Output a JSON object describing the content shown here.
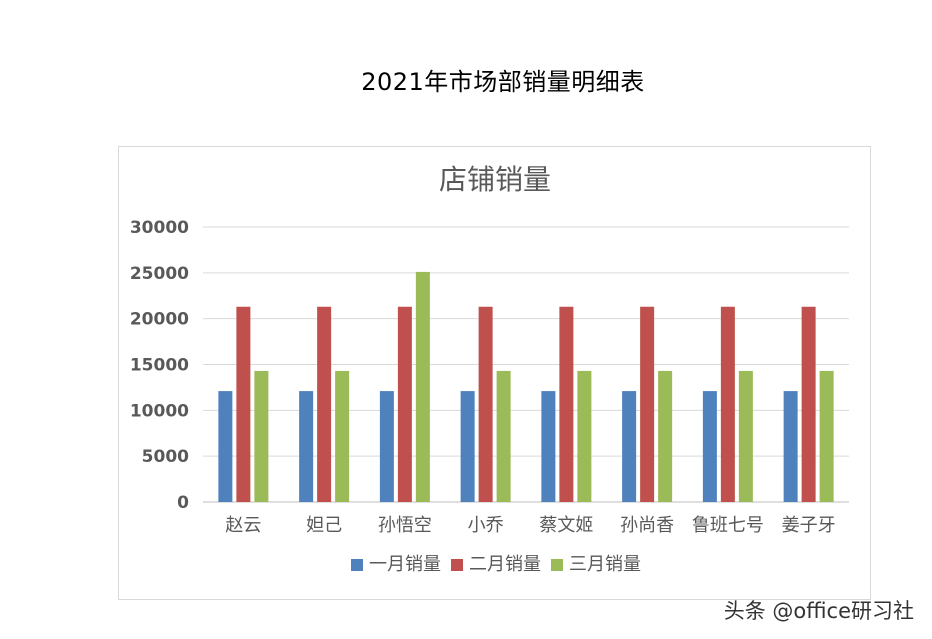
{
  "page": {
    "title": "2021年市场部销量明细表",
    "watermark": "头条 @office研习社"
  },
  "chart_data": {
    "type": "bar",
    "title": "店铺销量",
    "xlabel": "",
    "ylabel": "",
    "categories": [
      "赵云",
      "妲己",
      "孙悟空",
      "小乔",
      "蔡文姬",
      "孙尚香",
      "鲁班七号",
      "姜子牙"
    ],
    "series": [
      {
        "name": "一月销量",
        "color": "#4f81bd",
        "values": [
          12100,
          12100,
          12100,
          12100,
          12100,
          12100,
          12100,
          12100
        ]
      },
      {
        "name": "二月销量",
        "color": "#c0504d",
        "values": [
          21300,
          21300,
          21300,
          21300,
          21300,
          21300,
          21300,
          21300
        ]
      },
      {
        "name": "三月销量",
        "color": "#9bbb59",
        "values": [
          14300,
          14300,
          25100,
          14300,
          14300,
          14300,
          14300,
          14300
        ]
      }
    ],
    "ylim": [
      0,
      30000
    ],
    "yticks": [
      "0",
      "5000",
      "10000",
      "15000",
      "20000",
      "25000",
      "30000"
    ],
    "grid": true,
    "legend_position": "bottom",
    "colors": {
      "grid": "#d9d9d9",
      "axis": "#bfbfbf",
      "title": "#595959",
      "tick": "#595959"
    }
  }
}
